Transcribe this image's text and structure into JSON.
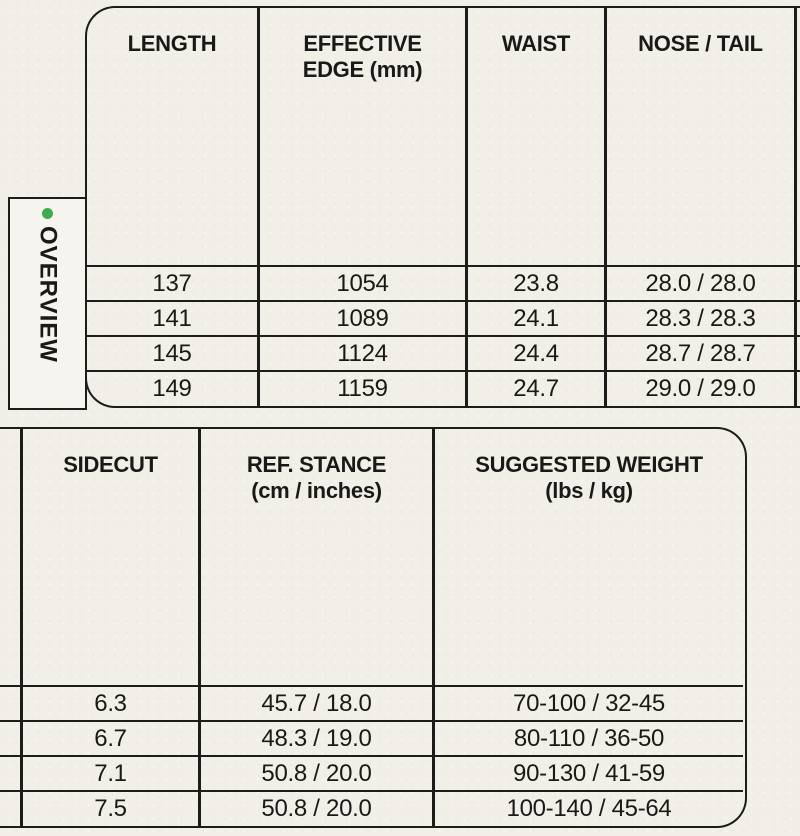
{
  "page": {
    "background_color": "#f2efe8",
    "line_color": "#1c1c1a",
    "text_color": "#191917"
  },
  "overview_tab": {
    "label": "OVERVIEW",
    "dot_color": "#3fac4b"
  },
  "table_top": {
    "headers": [
      {
        "line1": "LENGTH",
        "line2": ""
      },
      {
        "line1": "EFFECTIVE",
        "line2": "EDGE (mm)"
      },
      {
        "line1": "WAIST",
        "line2": ""
      },
      {
        "line1": "NOSE / TAIL",
        "line2": ""
      },
      {
        "line1": "",
        "line2": ""
      }
    ],
    "rows": [
      [
        "137",
        "1054",
        "23.8",
        "28.0 / 28.0",
        ""
      ],
      [
        "141",
        "1089",
        "24.1",
        "28.3 / 28.3",
        ""
      ],
      [
        "145",
        "1124",
        "24.4",
        "28.7 / 28.7",
        ""
      ],
      [
        "149",
        "1159",
        "24.7",
        "29.0 / 29.0",
        ""
      ]
    ]
  },
  "table_bottom": {
    "headers": [
      {
        "line1": "",
        "line2": ""
      },
      {
        "line1": "SIDECUT",
        "line2": ""
      },
      {
        "line1": "REF. STANCE",
        "line2": "(cm / inches)"
      },
      {
        "line1": "SUGGESTED WEIGHT",
        "line2": "(lbs / kg)"
      }
    ],
    "rows": [
      [
        "",
        "6.3",
        "45.7 / 18.0",
        "70-100 / 32-45"
      ],
      [
        "",
        "6.7",
        "48.3 / 19.0",
        "80-110 / 36-50"
      ],
      [
        "",
        "7.1",
        "50.8 / 20.0",
        "90-130 / 41-59"
      ],
      [
        "",
        "7.5",
        "50.8 / 20.0",
        "100-140 / 45-64"
      ]
    ]
  }
}
